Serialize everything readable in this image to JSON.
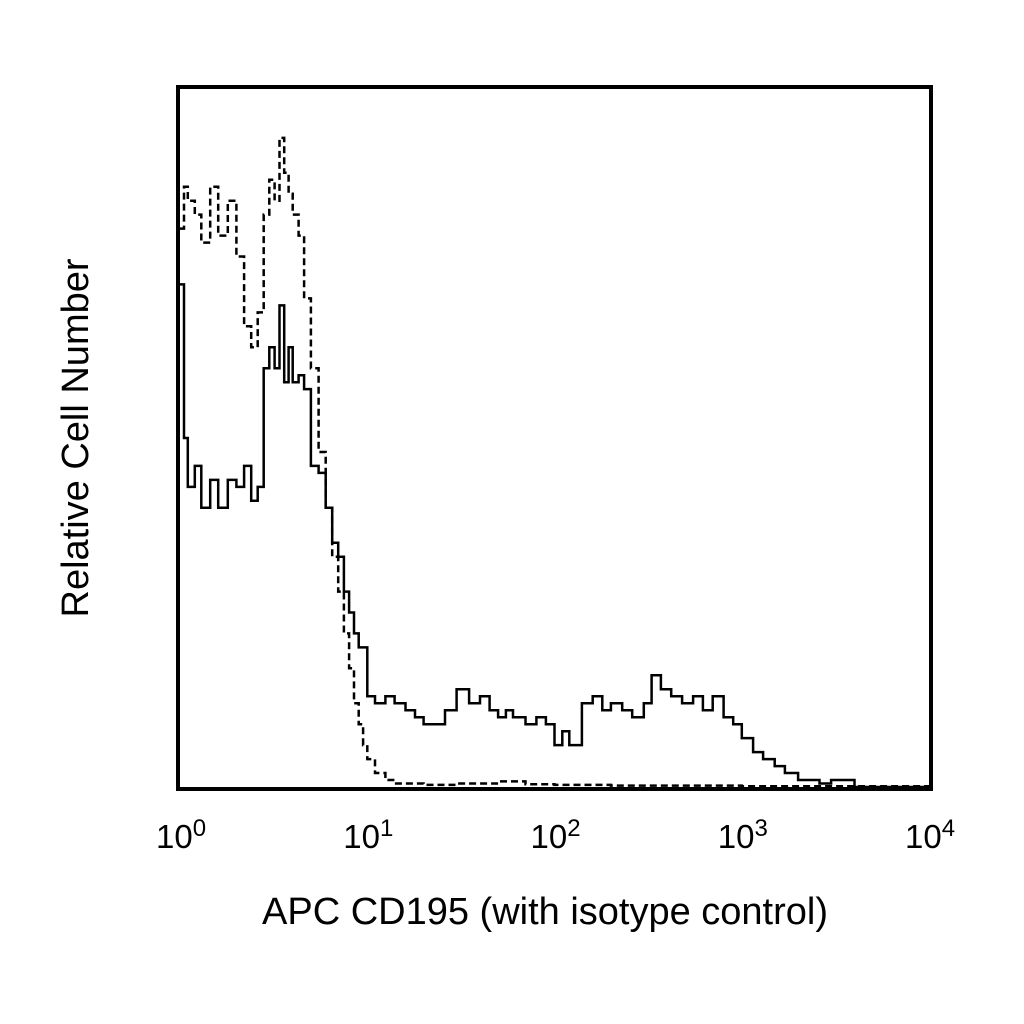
{
  "chart_data": {
    "type": "line",
    "title": "",
    "xlabel": "APC CD195 (with isotype control)",
    "ylabel": "Relative Cell Number",
    "xscale": "log",
    "xlim": [
      1,
      10000
    ],
    "ylim": [
      0,
      100
    ],
    "grid": false,
    "legend": "none",
    "x_ticks": [
      {
        "base": "10",
        "exp": "0"
      },
      {
        "base": "10",
        "exp": "1"
      },
      {
        "base": "10",
        "exp": "2"
      },
      {
        "base": "10",
        "exp": "3"
      },
      {
        "base": "10",
        "exp": "4"
      }
    ],
    "series": [
      {
        "style": "solid",
        "color": "#000000",
        "x": [
          1.0,
          1.05,
          1.1,
          1.2,
          1.3,
          1.45,
          1.6,
          1.8,
          2.0,
          2.2,
          2.4,
          2.6,
          2.8,
          3.0,
          3.2,
          3.4,
          3.6,
          3.8,
          4.0,
          4.3,
          4.6,
          5.0,
          5.5,
          6.0,
          6.5,
          7.0,
          7.5,
          8.0,
          8.5,
          9.0,
          10.0,
          11.0,
          12.5,
          14.0,
          16.0,
          18.0,
          20.0,
          23.0,
          26.0,
          30.0,
          35.0,
          40.0,
          45.0,
          50.0,
          55.0,
          60.0,
          70.0,
          80.0,
          90.0,
          100.0,
          110.0,
          120.0,
          140.0,
          160.0,
          180.0,
          200.0,
          230.0,
          260.0,
          300.0,
          330.0,
          370.0,
          420.0,
          480.0,
          550.0,
          620.0,
          700.0,
          800.0,
          900.0,
          1000.0,
          1150.0,
          1300.0,
          1500.0,
          1700.0,
          2000.0,
          2300.0,
          2600.0,
          3000.0,
          4000.0,
          5000.0,
          10000.0
        ],
        "y": [
          72,
          50,
          43,
          46,
          40,
          44,
          40,
          44,
          43,
          46,
          41,
          43,
          60,
          63,
          60,
          69,
          58,
          63,
          58,
          59,
          57,
          46,
          45,
          40,
          35,
          33,
          28,
          25,
          22,
          20,
          13,
          12,
          13,
          12,
          11,
          10,
          9,
          9,
          11,
          14,
          12,
          13,
          11,
          10,
          11,
          10,
          9,
          10,
          9,
          6,
          8,
          6,
          12,
          13,
          11,
          12,
          11,
          10,
          12,
          16,
          14,
          13,
          12,
          13,
          11,
          13,
          10,
          9,
          7,
          5,
          4,
          3,
          2,
          1,
          1,
          0.5,
          1,
          0,
          0,
          0
        ]
      },
      {
        "style": "dashed",
        "color": "#000000",
        "x": [
          1.0,
          1.05,
          1.1,
          1.2,
          1.3,
          1.45,
          1.6,
          1.8,
          2.0,
          2.2,
          2.4,
          2.6,
          2.8,
          3.0,
          3.2,
          3.4,
          3.6,
          3.8,
          4.0,
          4.3,
          4.6,
          5.0,
          5.5,
          6.0,
          6.5,
          7.0,
          7.5,
          8.0,
          8.5,
          9.0,
          9.5,
          10.0,
          11.0,
          12.5,
          14.0,
          16.0,
          20.0,
          30.0,
          50.0,
          70.0,
          100.0,
          200.0,
          500.0,
          1000.0,
          10000.0
        ],
        "y": [
          80,
          86,
          84,
          82,
          78,
          86,
          79,
          84,
          76,
          66,
          63,
          68,
          82,
          87,
          84,
          93,
          88,
          85,
          82,
          79,
          70,
          60,
          48,
          40,
          33,
          28,
          22,
          17,
          12,
          9,
          6,
          4,
          2,
          1,
          0.5,
          0.5,
          0.3,
          0.5,
          0.8,
          0.4,
          0.3,
          0.2,
          0.2,
          0.1,
          0
        ]
      }
    ]
  }
}
